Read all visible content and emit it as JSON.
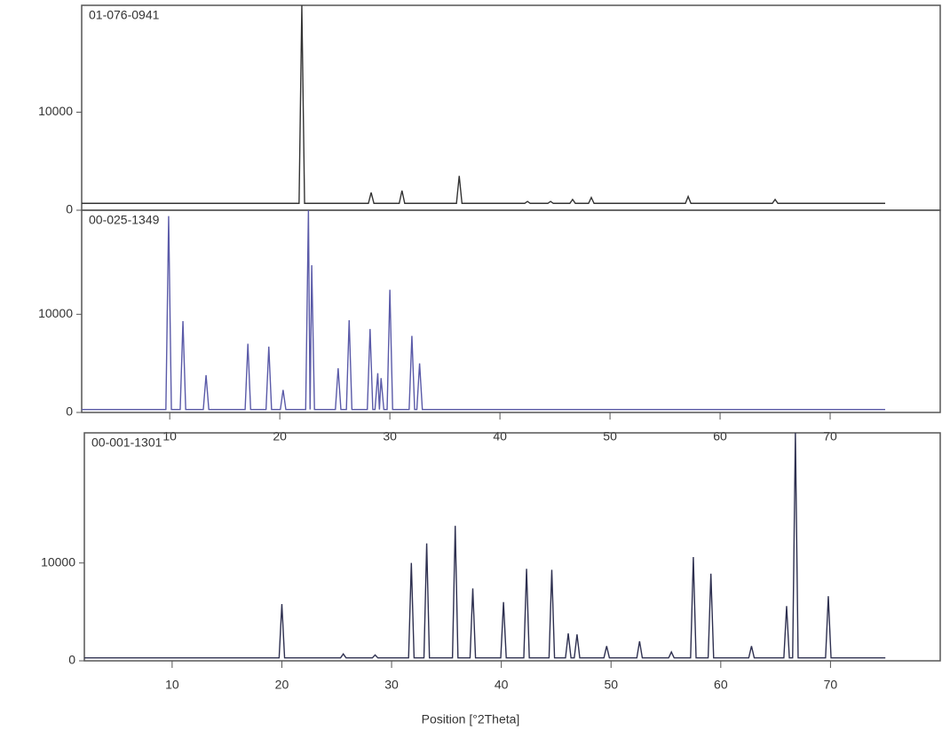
{
  "chart_data": [
    {
      "type": "line",
      "label": "01-076-0941",
      "color": "#333333",
      "x": [
        2,
        21.75,
        22,
        22.25,
        28.05,
        28.3,
        28.55,
        30.85,
        31.1,
        31.35,
        36.05,
        36.3,
        36.55,
        42.25,
        42.5,
        42.75,
        44.35,
        44.6,
        44.85,
        46.35,
        46.6,
        46.85,
        48.05,
        48.3,
        48.55,
        56.85,
        57.1,
        57.35,
        64.75,
        65,
        65.25,
        75
      ],
      "values": [
        700,
        700,
        20900,
        700,
        700,
        1800,
        700,
        700,
        2000,
        700,
        700,
        3500,
        700,
        700,
        900,
        700,
        700,
        900,
        700,
        700,
        1100,
        700,
        700,
        1300,
        700,
        700,
        1400,
        700,
        700,
        1100,
        700,
        700
      ],
      "xlim": [
        2,
        80
      ],
      "ylim": [
        0,
        20900
      ],
      "yticks": [
        0,
        10000
      ]
    },
    {
      "type": "line",
      "label": "00-025-1349",
      "color": "#5a5aa8",
      "x": [
        2,
        9.65,
        9.9,
        10.15,
        10.95,
        11.2,
        11.45,
        13.05,
        13.3,
        13.55,
        16.85,
        17.1,
        17.35,
        18.75,
        19,
        19.25,
        20.05,
        20.3,
        20.55,
        22.35,
        22.6,
        22.75,
        22.9,
        23.15,
        25.05,
        25.3,
        25.55,
        26.05,
        26.3,
        26.55,
        27.95,
        28.2,
        28.45,
        28.65,
        28.9,
        29.05,
        29.2,
        29.45,
        29.75,
        30,
        30.25,
        31.75,
        32,
        32.25,
        32.45,
        32.7,
        32.95,
        75
      ],
      "values": [
        300,
        300,
        20000,
        300,
        300,
        9300,
        300,
        300,
        3800,
        300,
        300,
        7000,
        300,
        300,
        6700,
        300,
        300,
        2300,
        300,
        300,
        20600,
        300,
        15000,
        300,
        300,
        4500,
        300,
        300,
        9400,
        300,
        300,
        8500,
        300,
        300,
        4000,
        300,
        3500,
        300,
        300,
        12500,
        300,
        300,
        7800,
        300,
        300,
        5000,
        300,
        300
      ],
      "xlim": [
        2,
        80
      ],
      "ylim": [
        0,
        20600
      ],
      "yticks": [
        0,
        10000
      ],
      "xticks": [
        10,
        20,
        30,
        40,
        50,
        60,
        70
      ]
    },
    {
      "type": "line",
      "label": "00-001-1301",
      "color": "#2e3050",
      "x": [
        2,
        19.75,
        20,
        20.25,
        25.35,
        25.6,
        25.85,
        28.25,
        28.5,
        28.75,
        31.55,
        31.8,
        32.05,
        32.95,
        33.2,
        33.45,
        35.55,
        35.8,
        36.05,
        37.15,
        37.4,
        37.65,
        39.95,
        40.2,
        40.45,
        42.05,
        42.3,
        42.55,
        44.35,
        44.6,
        44.85,
        45.85,
        46.1,
        46.35,
        46.65,
        46.9,
        47.15,
        49.35,
        49.6,
        49.85,
        52.35,
        52.6,
        52.85,
        55.25,
        55.5,
        55.75,
        57.25,
        57.5,
        57.75,
        58.85,
        59.1,
        59.35,
        62.55,
        62.8,
        63.05,
        65.75,
        66,
        66.25,
        66.55,
        66.8,
        67.05,
        69.55,
        69.8,
        70.05,
        75
      ],
      "values": [
        300,
        300,
        5800,
        300,
        300,
        700,
        300,
        300,
        600,
        300,
        300,
        10000,
        300,
        300,
        12000,
        300,
        300,
        13800,
        300,
        300,
        7400,
        300,
        300,
        6000,
        300,
        300,
        9400,
        300,
        300,
        9300,
        300,
        300,
        2800,
        300,
        300,
        2700,
        300,
        300,
        1500,
        300,
        300,
        2000,
        300,
        300,
        900,
        300,
        300,
        10600,
        300,
        300,
        8900,
        300,
        300,
        1500,
        300,
        300,
        5600,
        300,
        300,
        23300,
        300,
        300,
        6600,
        300,
        300
      ],
      "xlim": [
        2,
        80
      ],
      "ylim": [
        0,
        23300
      ],
      "yticks": [
        0,
        10000
      ],
      "xticks": [
        10,
        20,
        30,
        40,
        50,
        60,
        70
      ],
      "xlabel": "Position [°2Theta]"
    }
  ]
}
